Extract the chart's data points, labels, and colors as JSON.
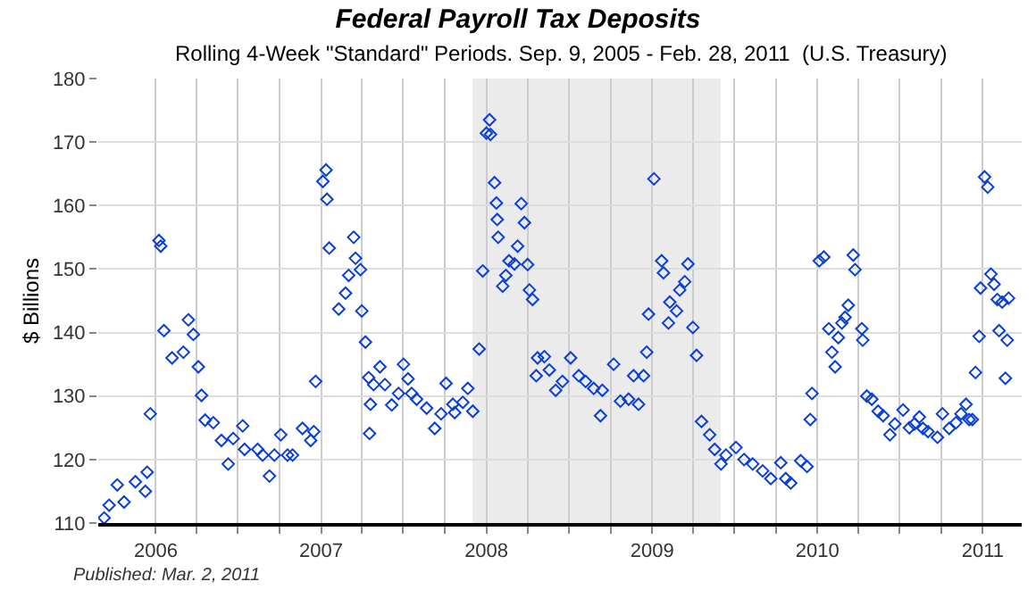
{
  "chart_data": {
    "type": "scatter",
    "title": "Federal Payroll Tax Deposits",
    "subtitle": "Rolling 4-Week \"Standard\" Periods. Sep. 9, 2005 - Feb. 28, 2011  (U.S. Treasury)",
    "ylabel": "$ Billions",
    "annotations": [
      "Published: Mar. 2, 2011"
    ],
    "x": [
      "2005-09-09",
      "2005-09-20",
      "2005-10-08",
      "2005-10-23",
      "2005-11-17",
      "2005-12-09",
      "2005-12-13",
      "2005-12-20",
      "2006-01-08",
      "2006-01-12",
      "2006-01-19",
      "2006-02-06",
      "2006-03-03",
      "2006-03-14",
      "2006-03-25",
      "2006-04-05",
      "2006-04-12",
      "2006-04-20",
      "2006-05-08",
      "2006-05-26",
      "2006-06-10",
      "2006-06-21",
      "2006-07-12",
      "2006-07-16",
      "2006-08-14",
      "2006-08-25",
      "2006-09-09",
      "2006-09-20",
      "2006-10-04",
      "2006-10-19",
      "2006-10-30",
      "2006-11-21",
      "2006-12-09",
      "2006-12-16",
      "2006-12-20",
      "2007-01-05",
      "2007-01-12",
      "2007-01-14",
      "2007-01-19",
      "2007-02-09",
      "2007-02-24",
      "2007-03-03",
      "2007-03-14",
      "2007-03-18",
      "2007-03-29",
      "2007-04-01",
      "2007-04-09",
      "2007-04-16",
      "2007-04-18",
      "2007-04-20",
      "2007-04-27",
      "2007-05-11",
      "2007-05-22",
      "2007-06-06",
      "2007-06-21",
      "2007-07-02",
      "2007-07-12",
      "2007-07-20",
      "2007-07-31",
      "2007-08-22",
      "2007-09-09",
      "2007-09-23",
      "2007-10-04",
      "2007-10-19",
      "2007-10-23",
      "2007-11-10",
      "2007-11-21",
      "2007-12-02",
      "2007-12-16",
      "2007-12-24",
      "2008-01-01",
      "2008-01-08",
      "2008-01-10",
      "2008-01-19",
      "2008-01-23",
      "2008-01-25",
      "2008-01-27",
      "2008-02-06",
      "2008-02-13",
      "2008-02-20",
      "2008-03-03",
      "2008-03-10",
      "2008-03-18",
      "2008-03-25",
      "2008-04-01",
      "2008-04-05",
      "2008-04-12",
      "2008-04-20",
      "2008-04-23",
      "2008-05-08",
      "2008-05-19",
      "2008-06-02",
      "2008-06-17",
      "2008-07-05",
      "2008-07-23",
      "2008-08-07",
      "2008-08-25",
      "2008-09-09",
      "2008-09-13",
      "2008-10-08",
      "2008-10-23",
      "2008-11-10",
      "2008-11-21",
      "2008-12-02",
      "2008-12-13",
      "2008-12-20",
      "2008-12-24",
      "2009-01-05",
      "2009-01-22",
      "2009-01-26",
      "2009-02-06",
      "2009-02-09",
      "2009-02-24",
      "2009-03-03",
      "2009-03-14",
      "2009-03-21",
      "2009-04-01",
      "2009-04-09",
      "2009-04-20",
      "2009-05-08",
      "2009-05-19",
      "2009-06-02",
      "2009-06-13",
      "2009-07-05",
      "2009-07-23",
      "2009-08-11",
      "2009-09-02",
      "2009-09-20",
      "2009-10-12",
      "2009-10-23",
      "2009-11-03",
      "2009-11-25",
      "2009-12-09",
      "2009-12-16",
      "2009-12-20",
      "2010-01-05",
      "2010-01-15",
      "2010-01-26",
      "2010-02-02",
      "2010-02-09",
      "2010-02-16",
      "2010-02-24",
      "2010-03-03",
      "2010-03-10",
      "2010-03-21",
      "2010-03-25",
      "2010-04-09",
      "2010-04-11",
      "2010-04-20",
      "2010-05-01",
      "2010-05-15",
      "2010-05-26",
      "2010-06-10",
      "2010-06-21",
      "2010-07-09",
      "2010-07-23",
      "2010-08-03",
      "2010-08-14",
      "2010-08-22",
      "2010-09-02",
      "2010-09-23",
      "2010-10-04",
      "2010-10-19",
      "2010-11-03",
      "2010-11-14",
      "2010-11-25",
      "2010-12-02",
      "2010-12-09",
      "2010-12-16",
      "2010-12-24",
      "2010-12-27",
      "2011-01-05",
      "2011-01-12",
      "2011-01-19",
      "2011-01-26",
      "2011-02-02",
      "2011-02-06",
      "2011-02-13",
      "2011-02-20",
      "2011-02-24",
      "2011-02-27"
    ],
    "series": [
      {
        "color": "#0a3fd6",
        "values": [
          110.8,
          112.8,
          116,
          113.3,
          116.5,
          115,
          118,
          127.2,
          154.5,
          153.6,
          140.3,
          136,
          136.9,
          142,
          139.7,
          134.6,
          130.1,
          126.2,
          125.8,
          123,
          119.3,
          123.3,
          125.3,
          121.6,
          121.6,
          120.7,
          117.4,
          120.7,
          123.9,
          120.7,
          120.7,
          124.9,
          123,
          124.4,
          132.3,
          163.8,
          165.6,
          161,
          153.3,
          143.7,
          146.2,
          149,
          155,
          151.7,
          149.9,
          143.4,
          138.5,
          132.9,
          124.1,
          128.7,
          131.8,
          134.6,
          131.8,
          128.6,
          130.4,
          135,
          132.7,
          130.4,
          129.5,
          128.1,
          124.9,
          127.2,
          132,
          128.7,
          127.4,
          129,
          131.2,
          127.6,
          137.4,
          149.7,
          171.4,
          173.5,
          171.2,
          163.6,
          160.4,
          157.8,
          155,
          147.3,
          149,
          151.3,
          150.8,
          153.6,
          160.3,
          157.3,
          150.7,
          146.7,
          145.2,
          133.2,
          136,
          136.2,
          134.1,
          130.9,
          132.3,
          136,
          133.2,
          132.3,
          131.2,
          126.9,
          130.9,
          135,
          129.2,
          129.5,
          133.2,
          128.7,
          133.2,
          136.9,
          142.9,
          164.2,
          151.3,
          149.4,
          141.5,
          144.8,
          143.4,
          146.7,
          148,
          150.8,
          140.8,
          136.4,
          126,
          123.9,
          121.6,
          119.3,
          120.7,
          121.9,
          120,
          119.3,
          118.2,
          117,
          119.5,
          117,
          116.3,
          119.8,
          118.9,
          126.3,
          130.4,
          151.3,
          151.9,
          140.6,
          136.9,
          134.6,
          139.2,
          141.5,
          142.4,
          144.3,
          152.2,
          149.9,
          140.6,
          138.8,
          130,
          129.5,
          127.6,
          126.9,
          123.9,
          125.6,
          127.8,
          125,
          125.6,
          126.7,
          124.9,
          124.4,
          123.5,
          127.2,
          124.9,
          125.8,
          127.2,
          128.7,
          126.3,
          126.3,
          133.7,
          139.4,
          147,
          164.5,
          162.9,
          149.2,
          147.6,
          145.2,
          140.3,
          144.8,
          132.8,
          138.8,
          145.4
        ]
      }
    ],
    "marker": "diamond",
    "grid": true,
    "xlim": [
      "2005-08-27",
      "2011-03-28"
    ],
    "xticks": [
      {
        "value": "2006-01-01",
        "label": "2006"
      },
      {
        "value": "2006-04-01",
        "label": null
      },
      {
        "value": "2006-07-01",
        "label": null
      },
      {
        "value": "2006-10-01",
        "label": null
      },
      {
        "value": "2007-01-01",
        "label": "2007"
      },
      {
        "value": "2007-04-01",
        "label": null
      },
      {
        "value": "2007-07-01",
        "label": null
      },
      {
        "value": "2007-10-01",
        "label": null
      },
      {
        "value": "2008-01-01",
        "label": "2008"
      },
      {
        "value": "2008-04-01",
        "label": null
      },
      {
        "value": "2008-07-01",
        "label": null
      },
      {
        "value": "2008-10-01",
        "label": null
      },
      {
        "value": "2009-01-01",
        "label": "2009"
      },
      {
        "value": "2009-04-01",
        "label": null
      },
      {
        "value": "2009-07-01",
        "label": null
      },
      {
        "value": "2009-10-01",
        "label": null
      },
      {
        "value": "2010-01-01",
        "label": "2010"
      },
      {
        "value": "2010-04-01",
        "label": null
      },
      {
        "value": "2010-07-01",
        "label": null
      },
      {
        "value": "2010-10-01",
        "label": null
      },
      {
        "value": "2011-01-01",
        "label": "2011"
      }
    ],
    "ylim": [
      110,
      180
    ],
    "yticks": [
      110,
      120,
      130,
      140,
      150,
      160,
      170,
      180
    ],
    "bands": [
      {
        "axis": "x",
        "from": "2007-12-01",
        "to": "2009-06-01",
        "color": "#ebebeb"
      }
    ]
  }
}
